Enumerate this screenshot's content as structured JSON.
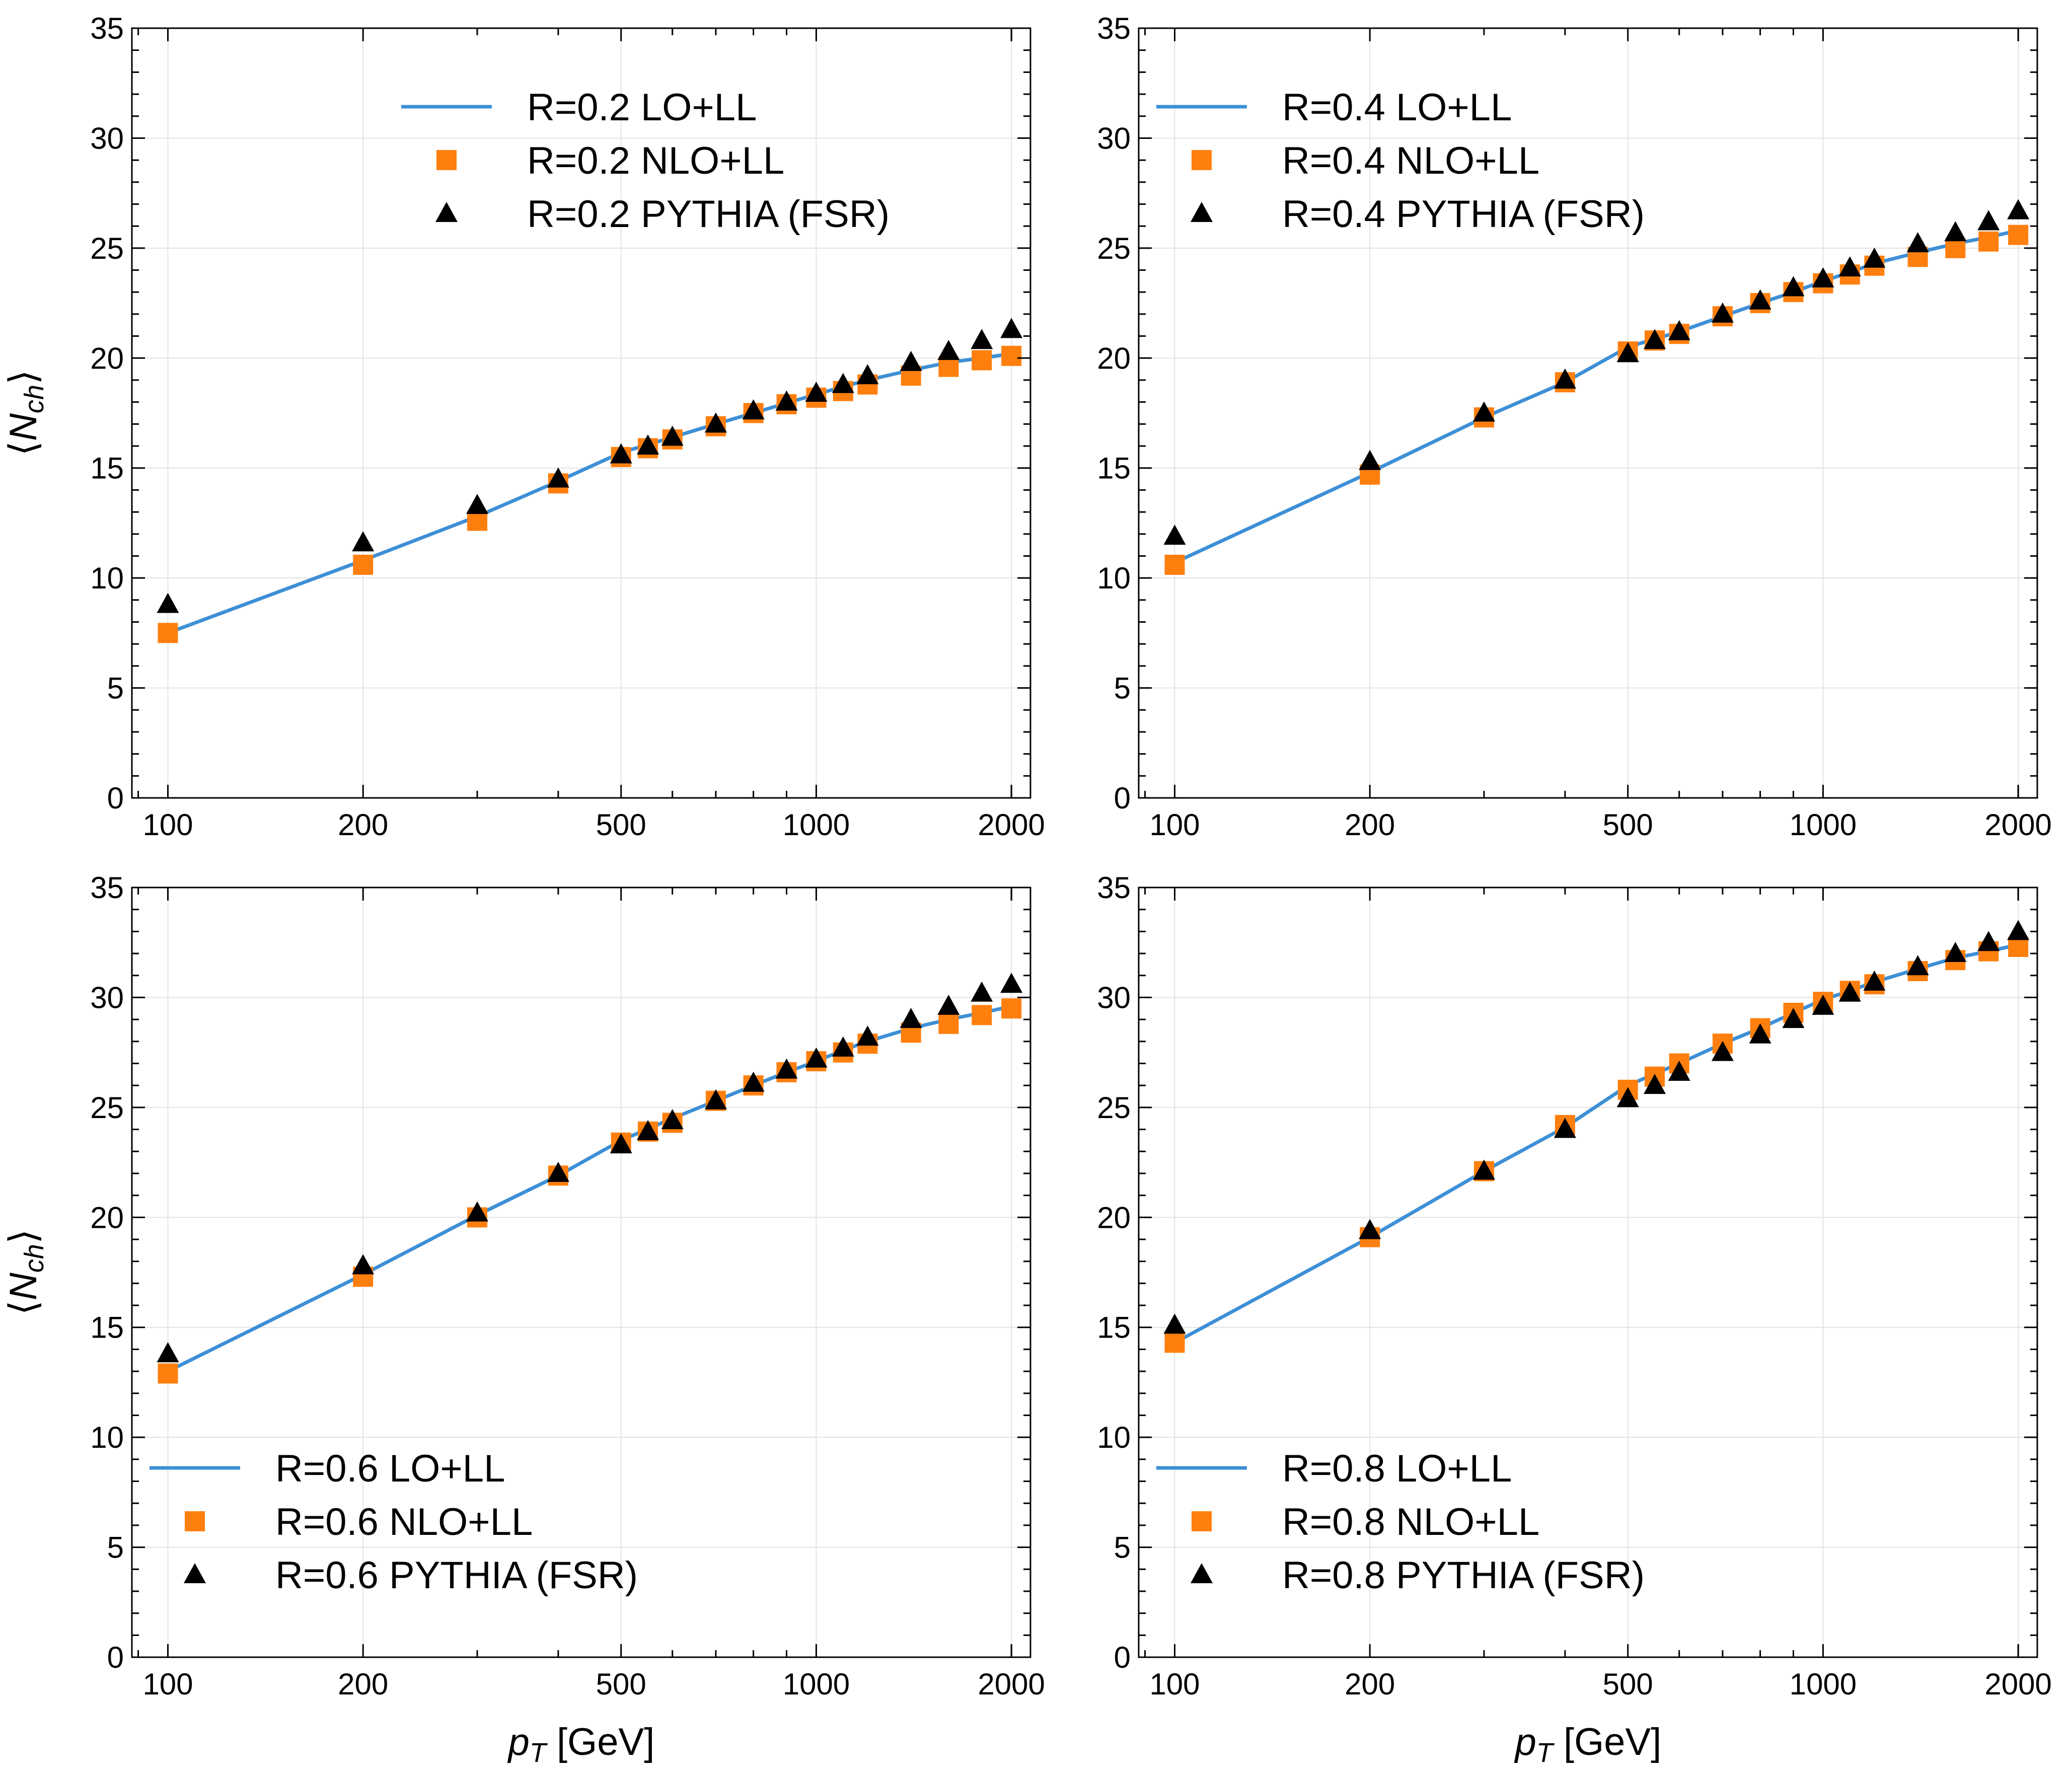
{
  "figure": {
    "xlabel_main": "p",
    "xlabel_sub": "T",
    "xlabel_unit": " [GeV]",
    "ylabel_main": "N",
    "ylabel_sub": "ch",
    "colors": {
      "lo": "#3d8fd6",
      "nlo": "#ff7f0e",
      "pythia": "#000000",
      "grid": "#e3e3e3"
    }
  },
  "chart_data": [
    {
      "type": "line",
      "title": "",
      "xlabel": "p_T [GeV]",
      "ylabel": "<N_ch>",
      "xscale": "log",
      "xlim": [
        88,
        2140
      ],
      "ylim": [
        0,
        35
      ],
      "xticks": [
        100,
        200,
        500,
        1000,
        2000
      ],
      "xtick_labels": [
        "100",
        "200",
        "500",
        "1000",
        "2000"
      ],
      "yticks": [
        0,
        5,
        10,
        15,
        20,
        25,
        30,
        35
      ],
      "ytick_labels": [
        "0",
        "5",
        "10",
        "15",
        "20",
        "25",
        "30",
        "35"
      ],
      "grid": true,
      "legend_position": "top-center",
      "series": [
        {
          "name": "R=0.2 LO+LL",
          "kind": "line",
          "x": [
            100,
            200,
            300,
            400,
            500,
            600,
            700,
            800,
            900,
            1000,
            1100,
            1200,
            1400,
            1600,
            1800,
            2000
          ],
          "values": [
            7.5,
            10.8,
            12.8,
            14.4,
            15.7,
            16.4,
            17.0,
            17.5,
            17.95,
            18.35,
            18.7,
            19.0,
            19.45,
            19.8,
            20.0,
            20.2
          ]
        },
        {
          "name": "R=0.2 NLO+LL",
          "kind": "square",
          "x": [
            100,
            200,
            300,
            400,
            500,
            550,
            600,
            700,
            800,
            900,
            1000,
            1100,
            1200,
            1400,
            1600,
            1800,
            2000
          ],
          "values": [
            7.5,
            10.6,
            12.6,
            14.3,
            15.5,
            15.9,
            16.3,
            16.9,
            17.5,
            17.9,
            18.2,
            18.5,
            18.8,
            19.2,
            19.6,
            19.9,
            20.1
          ]
        },
        {
          "name": "R=0.2 PYTHIA (FSR)",
          "kind": "triangle",
          "x": [
            100,
            200,
            300,
            400,
            500,
            550,
            600,
            700,
            800,
            900,
            1000,
            1100,
            1200,
            1400,
            1600,
            1800,
            2000
          ],
          "values": [
            8.8,
            11.6,
            13.3,
            14.5,
            15.6,
            16.0,
            16.4,
            17.0,
            17.6,
            18.0,
            18.4,
            18.8,
            19.2,
            19.8,
            20.3,
            20.8,
            21.3
          ]
        }
      ]
    },
    {
      "type": "line",
      "title": "",
      "xlabel": "p_T [GeV]",
      "ylabel": "<N_ch>",
      "xscale": "log",
      "xlim": [
        88,
        2140
      ],
      "ylim": [
        0,
        35
      ],
      "xticks": [
        100,
        200,
        500,
        1000,
        2000
      ],
      "xtick_labels": [
        "100",
        "200",
        "500",
        "1000",
        "2000"
      ],
      "yticks": [
        0,
        5,
        10,
        15,
        20,
        25,
        30,
        35
      ],
      "ytick_labels": [
        "0",
        "5",
        "10",
        "15",
        "20",
        "25",
        "30",
        "35"
      ],
      "grid": true,
      "legend_position": "top-left",
      "series": [
        {
          "name": "R=0.4 LO+LL",
          "kind": "line",
          "x": [
            100,
            200,
            300,
            400,
            500,
            600,
            700,
            800,
            900,
            1000,
            1100,
            1200,
            1400,
            1600,
            1800,
            2000
          ],
          "values": [
            10.7,
            14.8,
            17.3,
            18.9,
            20.5,
            21.2,
            21.9,
            22.5,
            23.0,
            23.5,
            23.9,
            24.3,
            24.8,
            25.2,
            25.5,
            25.8
          ]
        },
        {
          "name": "R=0.4 NLO+LL",
          "kind": "square",
          "x": [
            100,
            200,
            300,
            400,
            500,
            550,
            600,
            700,
            800,
            900,
            1000,
            1100,
            1200,
            1400,
            1600,
            1800,
            2000
          ],
          "values": [
            10.6,
            14.7,
            17.3,
            18.9,
            20.3,
            20.8,
            21.1,
            21.9,
            22.5,
            23.0,
            23.4,
            23.8,
            24.2,
            24.6,
            25.0,
            25.3,
            25.6
          ]
        },
        {
          "name": "R=0.4 PYTHIA (FSR)",
          "kind": "triangle",
          "x": [
            100,
            200,
            300,
            400,
            500,
            550,
            600,
            700,
            800,
            900,
            1000,
            1100,
            1200,
            1400,
            1600,
            1800,
            2000
          ],
          "values": [
            11.9,
            15.3,
            17.5,
            19.0,
            20.2,
            20.8,
            21.2,
            22.0,
            22.6,
            23.2,
            23.6,
            24.1,
            24.5,
            25.2,
            25.7,
            26.2,
            26.7
          ]
        }
      ]
    },
    {
      "type": "line",
      "title": "",
      "xlabel": "p_T [GeV]",
      "ylabel": "<N_ch>",
      "xscale": "log",
      "xlim": [
        88,
        2140
      ],
      "ylim": [
        0,
        35
      ],
      "xticks": [
        100,
        200,
        500,
        1000,
        2000
      ],
      "xtick_labels": [
        "100",
        "200",
        "500",
        "1000",
        "2000"
      ],
      "yticks": [
        0,
        5,
        10,
        15,
        20,
        25,
        30,
        35
      ],
      "ytick_labels": [
        "0",
        "5",
        "10",
        "15",
        "20",
        "25",
        "30",
        "35"
      ],
      "grid": true,
      "legend_position": "bottom-left",
      "series": [
        {
          "name": "R=0.6 LO+LL",
          "kind": "line",
          "x": [
            100,
            200,
            300,
            400,
            500,
            600,
            700,
            800,
            900,
            1000,
            1100,
            1200,
            1400,
            1600,
            1800,
            2000
          ],
          "values": [
            13.0,
            17.4,
            20.1,
            21.9,
            23.5,
            24.5,
            25.3,
            26.0,
            26.6,
            27.1,
            27.6,
            28.0,
            28.6,
            29.0,
            29.3,
            29.6
          ]
        },
        {
          "name": "R=0.6 NLO+LL",
          "kind": "square",
          "x": [
            100,
            200,
            300,
            400,
            500,
            550,
            600,
            700,
            800,
            900,
            1000,
            1100,
            1200,
            1400,
            1600,
            1800,
            2000
          ],
          "values": [
            12.9,
            17.3,
            20.0,
            21.9,
            23.4,
            23.9,
            24.3,
            25.3,
            26.0,
            26.6,
            27.1,
            27.5,
            27.9,
            28.4,
            28.8,
            29.2,
            29.5
          ]
        },
        {
          "name": "R=0.6 PYTHIA (FSR)",
          "kind": "triangle",
          "x": [
            100,
            200,
            300,
            400,
            500,
            550,
            600,
            700,
            800,
            900,
            1000,
            1100,
            1200,
            1400,
            1600,
            1800,
            2000
          ],
          "values": [
            13.8,
            17.8,
            20.2,
            22.0,
            23.3,
            23.9,
            24.4,
            25.3,
            26.1,
            26.7,
            27.2,
            27.7,
            28.2,
            29.0,
            29.6,
            30.2,
            30.6
          ]
        }
      ]
    },
    {
      "type": "line",
      "title": "",
      "xlabel": "p_T [GeV]",
      "ylabel": "<N_ch>",
      "xscale": "log",
      "xlim": [
        88,
        2140
      ],
      "ylim": [
        0,
        35
      ],
      "xticks": [
        100,
        200,
        500,
        1000,
        2000
      ],
      "xtick_labels": [
        "100",
        "200",
        "500",
        "1000",
        "2000"
      ],
      "yticks": [
        0,
        5,
        10,
        15,
        20,
        25,
        30,
        35
      ],
      "ytick_labels": [
        "0",
        "5",
        "10",
        "15",
        "20",
        "25",
        "30",
        "35"
      ],
      "grid": true,
      "legend_position": "bottom-left",
      "series": [
        {
          "name": "R=0.8 LO+LL",
          "kind": "line",
          "x": [
            100,
            200,
            300,
            400,
            500,
            600,
            700,
            800,
            900,
            1000,
            1100,
            1200,
            1400,
            1600,
            1800,
            2000
          ],
          "values": [
            14.3,
            19.1,
            22.1,
            24.1,
            26.0,
            27.0,
            27.9,
            28.6,
            29.3,
            29.9,
            30.3,
            30.7,
            31.3,
            31.8,
            32.1,
            32.4
          ]
        },
        {
          "name": "R=0.8 NLO+LL",
          "kind": "square",
          "x": [
            100,
            200,
            300,
            400,
            500,
            550,
            600,
            700,
            800,
            900,
            1000,
            1100,
            1200,
            1400,
            1600,
            1800,
            2000
          ],
          "values": [
            14.3,
            19.1,
            22.1,
            24.2,
            25.8,
            26.4,
            27.0,
            27.9,
            28.6,
            29.3,
            29.8,
            30.3,
            30.6,
            31.2,
            31.7,
            32.1,
            32.3
          ]
        },
        {
          "name": "R=0.8 PYTHIA (FSR)",
          "kind": "triangle",
          "x": [
            100,
            200,
            300,
            400,
            500,
            550,
            600,
            700,
            800,
            900,
            1000,
            1100,
            1200,
            1400,
            1600,
            1800,
            2000
          ],
          "values": [
            15.1,
            19.4,
            22.1,
            24.0,
            25.4,
            26.0,
            26.6,
            27.5,
            28.3,
            29.0,
            29.6,
            30.2,
            30.7,
            31.4,
            32.0,
            32.5,
            33.0
          ]
        }
      ]
    }
  ]
}
